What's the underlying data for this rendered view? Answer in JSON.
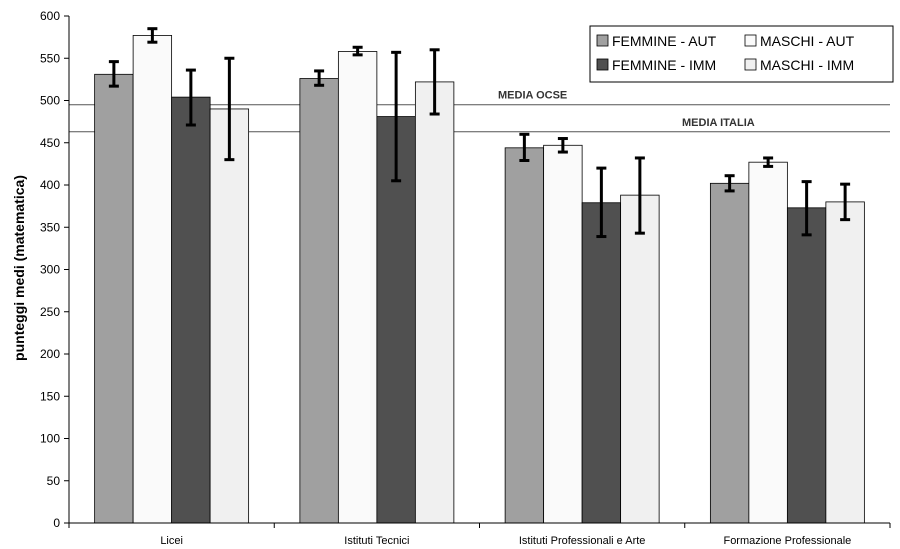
{
  "chart_data": {
    "type": "bar",
    "title": "",
    "xlabel": "",
    "ylabel": "punteggi medi (matematica)",
    "ylim": [
      0,
      600
    ],
    "yticks": [
      0,
      50,
      100,
      150,
      200,
      250,
      300,
      350,
      400,
      450,
      500,
      550,
      600
    ],
    "grid": false,
    "legend_position": "top-right",
    "categories": [
      "Licei",
      "Istituti Tecnici",
      "Istituti Professionali e Arte",
      "Formazione Professionale"
    ],
    "series": [
      {
        "name": "FEMMINE - AUT",
        "color": "#a0a0a0",
        "values": [
          531,
          526,
          444,
          402
        ],
        "error_low": [
          517,
          518,
          429,
          393
        ],
        "error_high": [
          546,
          535,
          460,
          411
        ]
      },
      {
        "name": "MASCHI - AUT",
        "color": "#fafafa",
        "values": [
          577,
          558,
          447,
          427
        ],
        "error_low": [
          569,
          554,
          439,
          422
        ],
        "error_high": [
          585,
          563,
          455,
          432
        ]
      },
      {
        "name": "FEMMINE - IMM",
        "color": "#505050",
        "values": [
          504,
          481,
          379,
          373
        ],
        "error_low": [
          471,
          405,
          339,
          341
        ],
        "error_high": [
          536,
          557,
          420,
          404
        ]
      },
      {
        "name": "MASCHI - IMM",
        "color": "#f0f0f0",
        "values": [
          490,
          522,
          388,
          380
        ],
        "error_low": [
          430,
          484,
          343,
          359
        ],
        "error_high": [
          550,
          560,
          432,
          401
        ]
      }
    ],
    "reference_lines": [
      {
        "label": "MEDIA OCSE",
        "value": 495
      },
      {
        "label": "MEDIA ITALIA",
        "value": 463
      }
    ]
  }
}
